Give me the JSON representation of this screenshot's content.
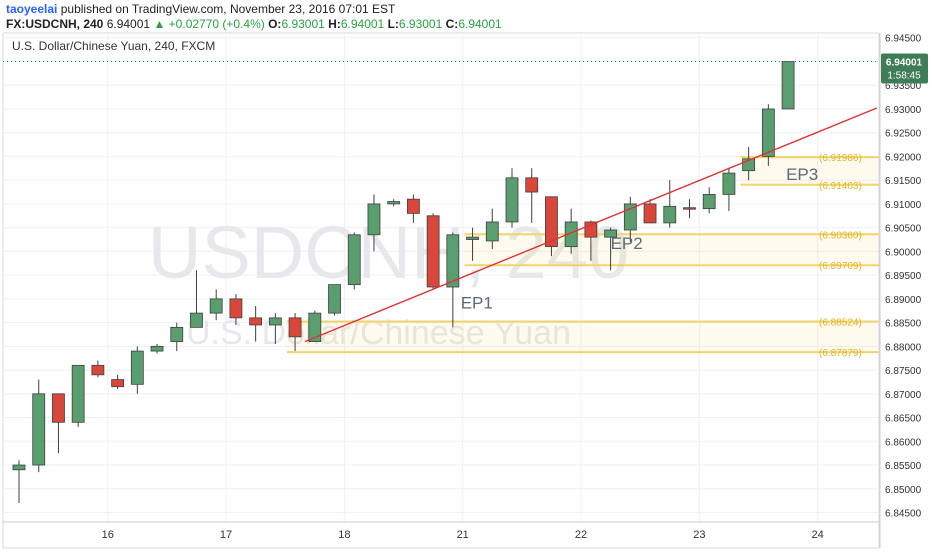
{
  "header": {
    "author": "taoyeelai",
    "published": "published on TradingView.com, November 23, 2016 07:01 EST",
    "symbol": "FX:USDCNH, 240",
    "last": "6.94001",
    "change_arrow": "▲",
    "change": "+0.02770 (+0.4%)",
    "o_label": "O:",
    "o_value": "6.93001",
    "h_label": "H:",
    "h_value": "6.94001",
    "l_label": "L:",
    "l_value": "6.93001",
    "c_label": "C:",
    "c_value": "6.94001"
  },
  "chart_legend": "U.S. Dollar/Chinese Yuan, 240, FXCM",
  "watermark": {
    "symbol": "USDCNH, 240",
    "name": "U.S. Dollar/Chinese Yuan"
  },
  "price_tag": {
    "value": "6.94001",
    "countdown": "1:58:45"
  },
  "colors": {
    "up": "#5a9e6f",
    "down": "#d9473a",
    "trendline": "#e03131",
    "zone": "#f3d46b",
    "zone_label": "#e0b52c",
    "price_tag": "#3e7d56"
  },
  "chart_data": {
    "type": "candlestick",
    "ylim": [
      6.843,
      6.946
    ],
    "y_ticks": [
      "6.84500",
      "6.85000",
      "6.85500",
      "6.86000",
      "6.86500",
      "6.87000",
      "6.87500",
      "6.88000",
      "6.88500",
      "6.89000",
      "6.89500",
      "6.90000",
      "6.90500",
      "6.91000",
      "6.91500",
      "6.92000",
      "6.92500",
      "6.93000",
      "6.93500",
      "6.94000",
      "6.94500"
    ],
    "x_labels": [
      {
        "label": "16",
        "index": 4.5
      },
      {
        "label": "17",
        "index": 10.5
      },
      {
        "label": "18",
        "index": 16.5
      },
      {
        "label": "21",
        "index": 22.5
      },
      {
        "label": "22",
        "index": 28.5
      },
      {
        "label": "23",
        "index": 34.5
      },
      {
        "label": "24",
        "index": 40.5
      }
    ],
    "candles": [
      {
        "o": 6.854,
        "h": 6.856,
        "l": 6.847,
        "c": 6.855
      },
      {
        "o": 6.855,
        "h": 6.873,
        "l": 6.8535,
        "c": 6.87
      },
      {
        "o": 6.87,
        "h": 6.87,
        "l": 6.8575,
        "c": 6.864
      },
      {
        "o": 6.864,
        "h": 6.876,
        "l": 6.863,
        "c": 6.876
      },
      {
        "o": 6.876,
        "h": 6.877,
        "l": 6.8735,
        "c": 6.874
      },
      {
        "o": 6.873,
        "h": 6.874,
        "l": 6.871,
        "c": 6.8715
      },
      {
        "o": 6.872,
        "h": 6.88,
        "l": 6.87,
        "c": 6.879
      },
      {
        "o": 6.879,
        "h": 6.8805,
        "l": 6.8785,
        "c": 6.88
      },
      {
        "o": 6.881,
        "h": 6.885,
        "l": 6.879,
        "c": 6.884
      },
      {
        "o": 6.884,
        "h": 6.896,
        "l": 6.884,
        "c": 6.887
      },
      {
        "o": 6.887,
        "h": 6.892,
        "l": 6.8855,
        "c": 6.89
      },
      {
        "o": 6.89,
        "h": 6.891,
        "l": 6.8845,
        "c": 6.886
      },
      {
        "o": 6.886,
        "h": 6.8885,
        "l": 6.881,
        "c": 6.8845
      },
      {
        "o": 6.8845,
        "h": 6.887,
        "l": 6.8805,
        "c": 6.886
      },
      {
        "o": 6.886,
        "h": 6.887,
        "l": 6.879,
        "c": 6.882
      },
      {
        "o": 6.881,
        "h": 6.8875,
        "l": 6.881,
        "c": 6.887
      },
      {
        "o": 6.887,
        "h": 6.893,
        "l": 6.8865,
        "c": 6.893
      },
      {
        "o": 6.893,
        "h": 6.904,
        "l": 6.892,
        "c": 6.9035
      },
      {
        "o": 6.9035,
        "h": 6.912,
        "l": 6.9,
        "c": 6.91
      },
      {
        "o": 6.91,
        "h": 6.911,
        "l": 6.9095,
        "c": 6.9105
      },
      {
        "o": 6.911,
        "h": 6.912,
        "l": 6.906,
        "c": 6.908
      },
      {
        "o": 6.9075,
        "h": 6.908,
        "l": 6.892,
        "c": 6.8925
      },
      {
        "o": 6.8925,
        "h": 6.904,
        "l": 6.884,
        "c": 6.9035
      },
      {
        "o": 6.9025,
        "h": 6.905,
        "l": 6.898,
        "c": 6.903
      },
      {
        "o": 6.9022,
        "h": 6.909,
        "l": 6.9005,
        "c": 6.9062
      },
      {
        "o": 6.9062,
        "h": 6.9175,
        "l": 6.905,
        "c": 6.9155
      },
      {
        "o": 6.9155,
        "h": 6.9175,
        "l": 6.906,
        "c": 6.9125
      },
      {
        "o": 6.9115,
        "h": 6.9115,
        "l": 6.899,
        "c": 6.901
      },
      {
        "o": 6.901,
        "h": 6.909,
        "l": 6.8995,
        "c": 6.9062
      },
      {
        "o": 6.9062,
        "h": 6.9065,
        "l": 6.898,
        "c": 6.903
      },
      {
        "o": 6.903,
        "h": 6.905,
        "l": 6.896,
        "c": 6.9045
      },
      {
        "o": 6.9045,
        "h": 6.9115,
        "l": 6.902,
        "c": 6.91
      },
      {
        "o": 6.91,
        "h": 6.911,
        "l": 6.906,
        "c": 6.906
      },
      {
        "o": 6.906,
        "h": 6.915,
        "l": 6.905,
        "c": 6.9095
      },
      {
        "o": 6.9092,
        "h": 6.911,
        "l": 6.907,
        "c": 6.909
      },
      {
        "o": 6.909,
        "h": 6.9135,
        "l": 6.908,
        "c": 6.912
      },
      {
        "o": 6.912,
        "h": 6.9175,
        "l": 6.9085,
        "c": 6.9165
      },
      {
        "o": 6.917,
        "h": 6.922,
        "l": 6.915,
        "c": 6.9195
      },
      {
        "o": 6.92,
        "h": 6.931,
        "l": 6.918,
        "c": 6.93
      },
      {
        "o": 6.93,
        "h": 6.94,
        "l": 6.93,
        "c": 6.94
      }
    ],
    "zones": [
      {
        "label": "(6.91986)",
        "top": 6.91986,
        "bottom": 6.91403,
        "start_index": 37
      },
      {
        "label": "(6.91403)",
        "top": 6.91403,
        "bottom": 6.91403,
        "start_index": 37
      },
      {
        "label": "(6.90360)",
        "top": 6.9036,
        "bottom": 6.89709,
        "start_index": 23
      },
      {
        "label": "(6.89709)",
        "top": 6.89709,
        "bottom": 6.89709,
        "start_index": 23
      },
      {
        "label": "(6.88524)",
        "top": 6.88524,
        "bottom": 6.87879,
        "start_index": 14
      },
      {
        "label": "(6.87879)",
        "top": 6.87879,
        "bottom": 6.87879,
        "start_index": 14
      }
    ],
    "trendline": {
      "start": {
        "index": 14.5,
        "price": 6.881
      },
      "end": {
        "index": 43.5,
        "price": 6.9302
      }
    },
    "annotations": [
      {
        "label": "EP1",
        "index": 22.4,
        "price": 6.888
      },
      {
        "label": "EP2",
        "index": 30.0,
        "price": 6.9005
      },
      {
        "label": "EP3",
        "index": 38.9,
        "price": 6.915
      }
    ],
    "last_price": 6.94001
  }
}
